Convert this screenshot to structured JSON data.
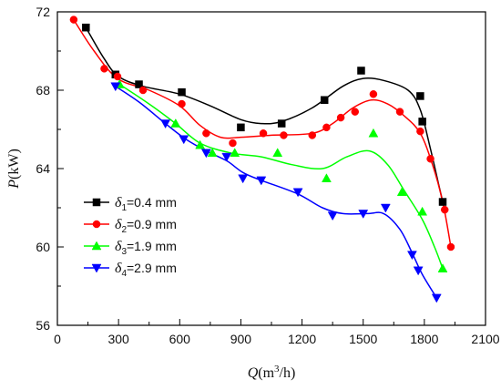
{
  "chart_data": {
    "type": "scatter",
    "xlabel_main": "Q",
    "xlabel_unit_pre": "(m",
    "xlabel_unit_sup": "3",
    "xlabel_unit_post": "/h)",
    "ylabel_main": "P",
    "ylabel_unit": "(kW)",
    "xlim": [
      0,
      2100
    ],
    "ylim": [
      56,
      72
    ],
    "x_ticks": [
      0,
      300,
      600,
      900,
      1200,
      1500,
      1800,
      2100
    ],
    "y_ticks": [
      56,
      60,
      64,
      68,
      72
    ],
    "x_tick_labels": [
      "0",
      "300",
      "600",
      "900",
      "1200",
      "1500",
      "1800",
      "2100"
    ],
    "y_tick_labels": [
      "56",
      "60",
      "64",
      "68",
      "72"
    ],
    "grid": false,
    "legend_position": "bottom-left",
    "series": [
      {
        "name_symbol": "δ",
        "name_sub": "1",
        "name_rest": "=0.4 mm",
        "color": "#000000",
        "marker": "square",
        "points": [
          [
            140,
            71.2
          ],
          [
            285,
            68.8
          ],
          [
            400,
            68.3
          ],
          [
            610,
            67.9
          ],
          [
            900,
            66.1
          ],
          [
            1100,
            66.3
          ],
          [
            1310,
            67.5
          ],
          [
            1490,
            69.0
          ],
          [
            1780,
            67.7
          ],
          [
            1790,
            66.4
          ],
          [
            1890,
            62.3
          ]
        ],
        "curve": [
          [
            140,
            71.2
          ],
          [
            230,
            69.6
          ],
          [
            300,
            68.7
          ],
          [
            420,
            68.2
          ],
          [
            600,
            67.8
          ],
          [
            750,
            67.2
          ],
          [
            900,
            66.5
          ],
          [
            1000,
            66.3
          ],
          [
            1100,
            66.4
          ],
          [
            1250,
            67.1
          ],
          [
            1400,
            68.2
          ],
          [
            1500,
            68.6
          ],
          [
            1600,
            68.5
          ],
          [
            1720,
            68.0
          ],
          [
            1780,
            67.0
          ],
          [
            1830,
            65.0
          ],
          [
            1870,
            63.2
          ],
          [
            1890,
            62.3
          ]
        ]
      },
      {
        "name_symbol": "δ",
        "name_sub": "2",
        "name_rest": "=0.9 mm",
        "color": "#ff0000",
        "marker": "circle",
        "points": [
          [
            80,
            71.6
          ],
          [
            230,
            69.1
          ],
          [
            295,
            68.7
          ],
          [
            420,
            68.0
          ],
          [
            610,
            67.3
          ],
          [
            730,
            65.8
          ],
          [
            860,
            65.3
          ],
          [
            1010,
            65.8
          ],
          [
            1110,
            65.7
          ],
          [
            1250,
            65.7
          ],
          [
            1320,
            66.1
          ],
          [
            1390,
            66.6
          ],
          [
            1460,
            66.9
          ],
          [
            1550,
            67.8
          ],
          [
            1680,
            66.9
          ],
          [
            1780,
            65.9
          ],
          [
            1830,
            64.5
          ],
          [
            1900,
            61.9
          ],
          [
            1930,
            60.0
          ]
        ],
        "curve": [
          [
            80,
            71.6
          ],
          [
            180,
            70.0
          ],
          [
            295,
            68.6
          ],
          [
            450,
            68.0
          ],
          [
            600,
            67.2
          ],
          [
            700,
            66.2
          ],
          [
            800,
            65.6
          ],
          [
            900,
            65.6
          ],
          [
            1050,
            65.7
          ],
          [
            1250,
            65.8
          ],
          [
            1350,
            66.3
          ],
          [
            1450,
            67.1
          ],
          [
            1540,
            67.5
          ],
          [
            1620,
            67.3
          ],
          [
            1700,
            66.7
          ],
          [
            1780,
            65.8
          ],
          [
            1840,
            64.2
          ],
          [
            1890,
            62.3
          ],
          [
            1930,
            60.0
          ]
        ]
      },
      {
        "name_symbol": "δ",
        "name_sub": "3",
        "name_rest": "=1.9 mm",
        "color": "#00ff00",
        "marker": "triangle-up",
        "points": [
          [
            305,
            68.3
          ],
          [
            580,
            66.3
          ],
          [
            700,
            65.2
          ],
          [
            760,
            64.8
          ],
          [
            870,
            64.8
          ],
          [
            1080,
            64.8
          ],
          [
            1320,
            63.5
          ],
          [
            1550,
            65.8
          ],
          [
            1690,
            62.8
          ],
          [
            1790,
            61.8
          ],
          [
            1890,
            58.9
          ]
        ],
        "curve": [
          [
            305,
            68.3
          ],
          [
            450,
            67.3
          ],
          [
            580,
            66.3
          ],
          [
            700,
            65.3
          ],
          [
            850,
            64.8
          ],
          [
            1000,
            64.6
          ],
          [
            1150,
            64.2
          ],
          [
            1300,
            64.0
          ],
          [
            1420,
            64.6
          ],
          [
            1530,
            64.9
          ],
          [
            1620,
            64.2
          ],
          [
            1700,
            62.9
          ],
          [
            1790,
            61.4
          ],
          [
            1850,
            60.0
          ],
          [
            1890,
            58.9
          ]
        ]
      },
      {
        "name_symbol": "δ",
        "name_sub": "4",
        "name_rest": "=2.9 mm",
        "color": "#0000ff",
        "marker": "triangle-down",
        "points": [
          [
            285,
            68.2
          ],
          [
            530,
            66.3
          ],
          [
            620,
            65.5
          ],
          [
            730,
            64.8
          ],
          [
            830,
            64.6
          ],
          [
            910,
            63.5
          ],
          [
            1000,
            63.4
          ],
          [
            1180,
            62.8
          ],
          [
            1350,
            61.6
          ],
          [
            1500,
            61.7
          ],
          [
            1610,
            62.0
          ],
          [
            1740,
            59.6
          ],
          [
            1770,
            58.8
          ],
          [
            1860,
            57.4
          ]
        ],
        "curve": [
          [
            285,
            68.2
          ],
          [
            400,
            67.4
          ],
          [
            530,
            66.3
          ],
          [
            630,
            65.5
          ],
          [
            730,
            64.9
          ],
          [
            830,
            64.4
          ],
          [
            910,
            63.8
          ],
          [
            1000,
            63.4
          ],
          [
            1180,
            62.7
          ],
          [
            1300,
            62.0
          ],
          [
            1400,
            61.7
          ],
          [
            1520,
            61.7
          ],
          [
            1600,
            61.7
          ],
          [
            1680,
            60.9
          ],
          [
            1740,
            59.7
          ],
          [
            1790,
            58.6
          ],
          [
            1860,
            57.4
          ]
        ]
      }
    ]
  }
}
